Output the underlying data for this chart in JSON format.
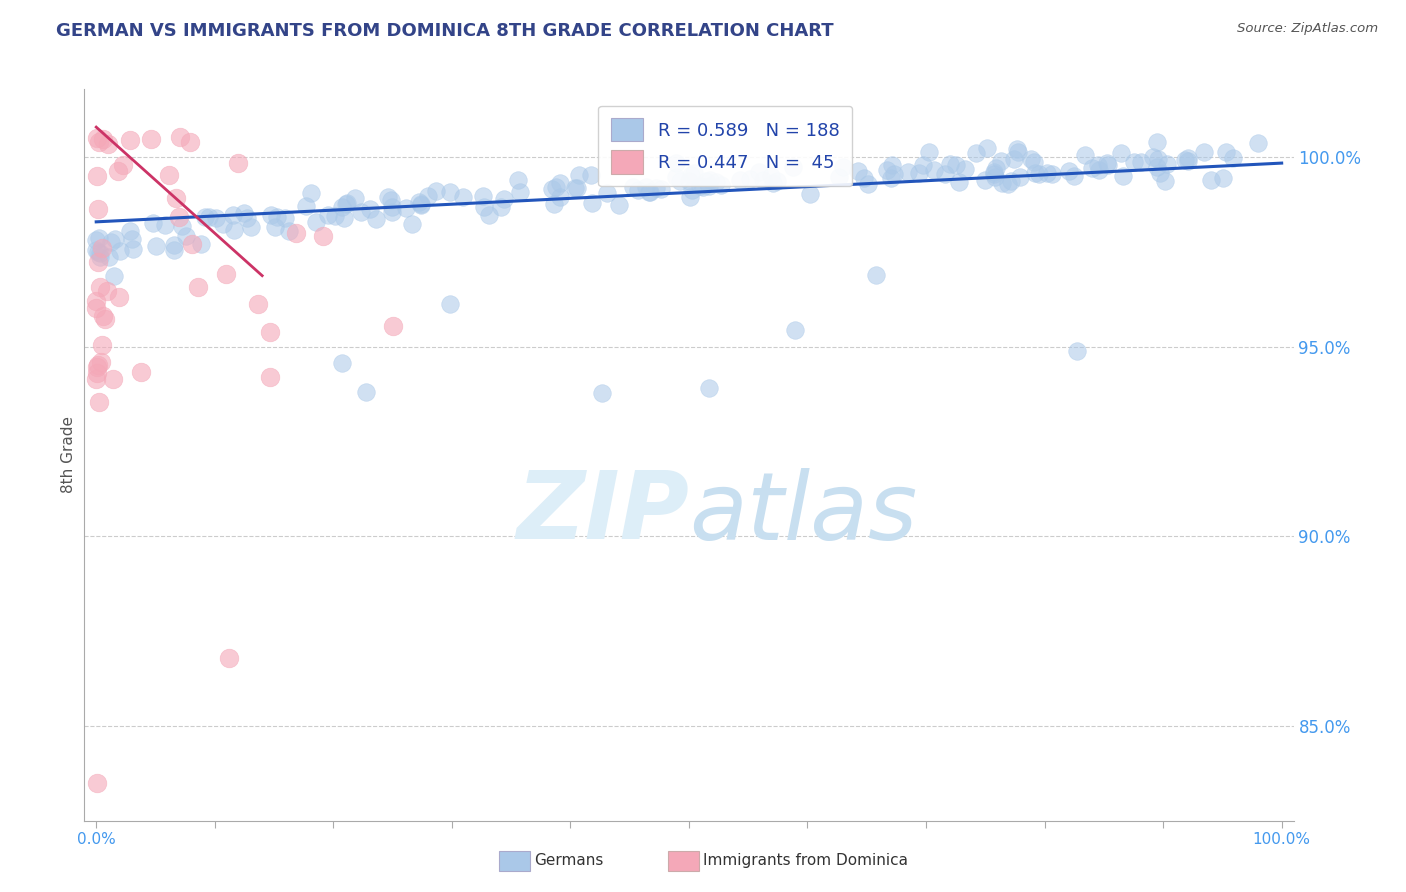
{
  "title": "GERMAN VS IMMIGRANTS FROM DOMINICA 8TH GRADE CORRELATION CHART",
  "source": "Source: ZipAtlas.com",
  "ylabel": "8th Grade",
  "german_R": 0.589,
  "german_N": 188,
  "dominica_R": 0.447,
  "dominica_N": 45,
  "blue_color": "#aac8e8",
  "pink_color": "#f4a8b8",
  "blue_line_color": "#2255bb",
  "pink_line_color": "#cc3366",
  "watermark_color": "#ddeef8",
  "background_color": "#ffffff",
  "grid_color": "#cccccc",
  "ytick_color": "#4499ee",
  "xtick_color": "#4499ee",
  "title_color": "#334488",
  "legend_label_color": "#2244aa"
}
